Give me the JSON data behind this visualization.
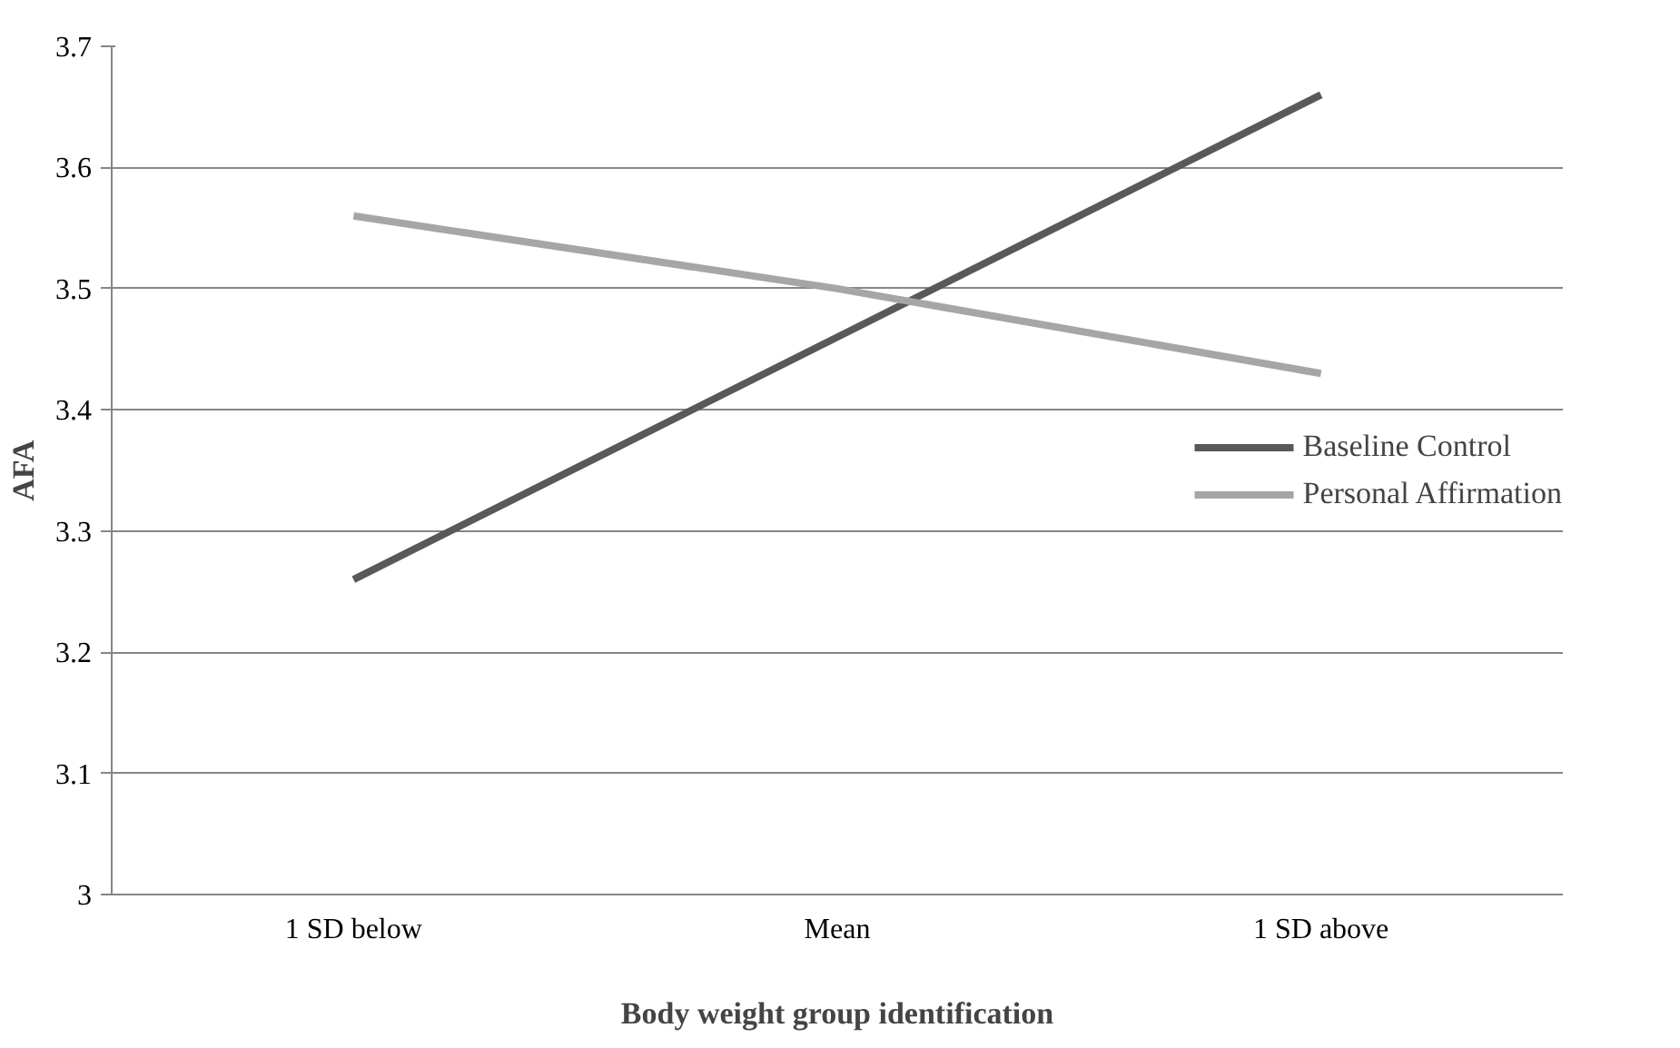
{
  "chart_data": {
    "type": "line",
    "xlabel": "Body weight group identification",
    "ylabel": "AFA",
    "categories": [
      "1 SD below",
      "Mean",
      "1 SD above"
    ],
    "series": [
      {
        "name": "Baseline Control",
        "color": "#595959",
        "values": [
          3.26,
          3.46,
          3.66
        ]
      },
      {
        "name": "Personal Affirmation",
        "color": "#a6a6a6",
        "values": [
          3.56,
          3.5,
          3.43
        ]
      }
    ],
    "ylim": [
      3,
      3.7
    ],
    "yticks": [
      {
        "value": 3,
        "label": "3"
      },
      3.1,
      3.2,
      3.3,
      3.4,
      3.5,
      3.6,
      3.7
    ],
    "grid": "y",
    "legend": "right",
    "marker": "none",
    "line_style": "solid"
  }
}
